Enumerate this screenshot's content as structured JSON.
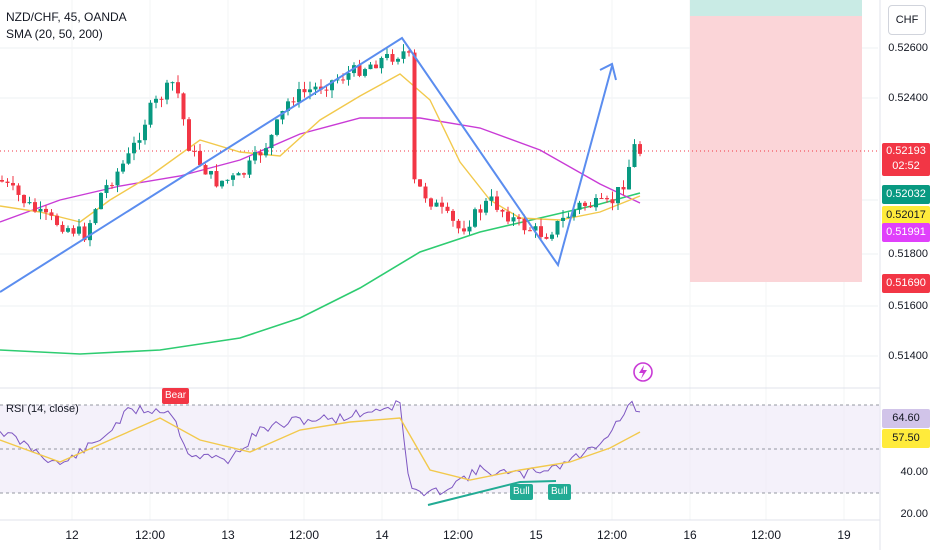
{
  "header": {
    "symbol_line": "NZD/CHF, 45, OANDA",
    "sma_line": "SMA (20, 50, 200)",
    "currency_button": "CHF"
  },
  "price_axis": {
    "ticks": [
      "0.52600",
      "0.52400",
      "0.51800",
      "0.51600",
      "0.51400"
    ],
    "tags": [
      {
        "text": "0.52193",
        "sub": "02:52",
        "color": "#f23645"
      },
      {
        "text": "0.52032",
        "color": "#089981"
      },
      {
        "text": "0.52017",
        "color": "#ffeb3b"
      },
      {
        "text": "0.51991",
        "color": "#e040fb"
      },
      {
        "text": "0.51690",
        "color": "#f23645"
      }
    ]
  },
  "rsi": {
    "label": "RSI (14, close)",
    "axis_ticks": [
      "40.00",
      "20.00"
    ],
    "tags": [
      {
        "text": "64.60",
        "color": "#d1c4e9"
      },
      {
        "text": "57.50",
        "color": "#ffeb3b"
      }
    ],
    "signals": [
      {
        "text": "Bear",
        "color": "#f23645"
      },
      {
        "text": "Bull",
        "color": "#22ab94"
      },
      {
        "text": "Bull",
        "color": "#22ab94"
      }
    ]
  },
  "time_axis": {
    "labels": [
      "12",
      "12:00",
      "13",
      "12:00",
      "14",
      "12:00",
      "15",
      "12:00",
      "16",
      "12:00",
      "19"
    ]
  },
  "icons": {
    "alert": "lightning-bolt-icon"
  },
  "colors": {
    "sma20": "#f2c94c",
    "sma50": "#c93bd6",
    "sma200": "#2ecc71",
    "bull": "#089981",
    "bear": "#f23645",
    "pattern_line": "#5b8def",
    "rsi_line": "#7e57c2",
    "rsi_ma": "#f2c94c"
  },
  "position_tool": {
    "target_color": "#c9ebe5",
    "stop_color": "#fbd5d8"
  }
}
